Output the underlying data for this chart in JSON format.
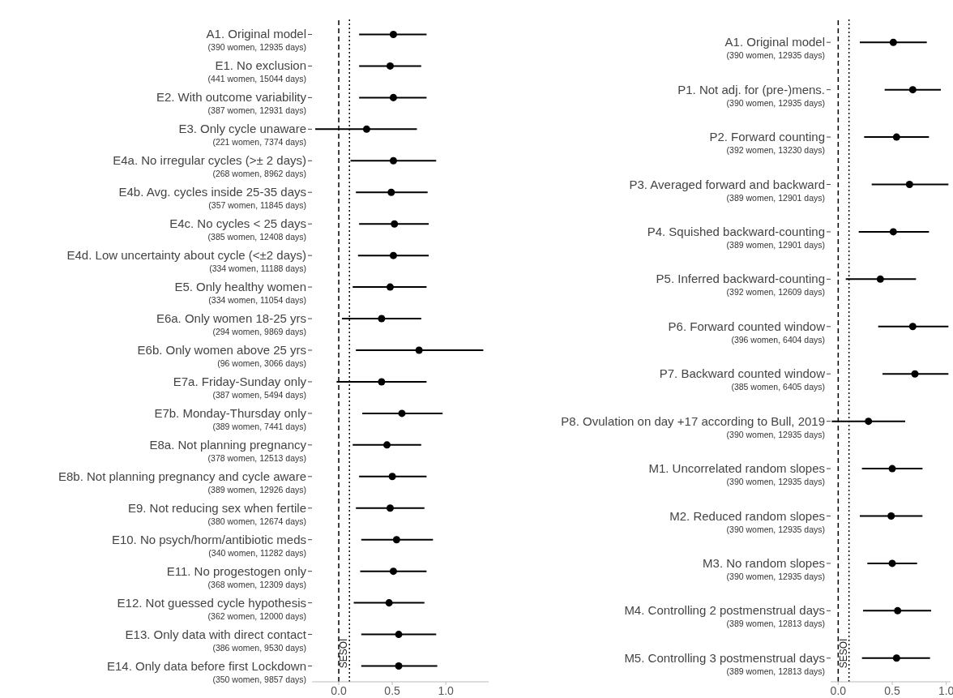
{
  "chart_data": [
    {
      "type": "scatter",
      "orientation": "horizontal",
      "marker": "circle",
      "categories": [
        "A1. Original model\n(390 women, 12935 days)",
        "E1. No exclusion\n(441 women, 15044 days)",
        "E2. With outcome variability\n(387 women, 12931 days)",
        "E3. Only cycle unaware\n(221 women, 7374 days)",
        "E4a. No irregular cycles (>± 2 days)\n(268 women, 8962 days)",
        "E4b. Avg. cycles inside 25-35 days\n(357 women, 11845 days)",
        "E4c. No cycles < 25 days\n(385 women, 12408 days)",
        "E4d. Low uncertainty about cycle (<±2 days)\n(334 women, 11188 days)",
        "E5. Only healthy women\n(334 women, 11054 days)",
        "E6a. Only women 18-25 yrs\n(294 women, 9869 days)",
        "E6b. Only women above 25 yrs\n(96 women, 3066 days)",
        "E7a. Friday-Sunday only\n(387 women, 5494 days)",
        "E7b. Monday-Thursday only\n(389 women, 7441 days)",
        "E8a. Not planning pregnancy\n(378 women, 12513 days)",
        "E8b. Not planning pregnancy and cycle aware\n(389 women, 12926 days)",
        "E9. Not reducing sex when fertile\n(380 women, 12674 days)",
        "E10. No psych/horm/antibiotic meds\n(340 women, 11282 days)",
        "E11. No progestogen only\n(368 women, 12309 days)",
        "E12. Not guessed cycle hypothesis\n(362 women, 12000 days)",
        "E13. Only data with direct contact\n(386 women, 9530 days)",
        "E14. Only data before first Lockdown\n(350 women, 9857 days)"
      ],
      "series": [
        {
          "color": "#000000",
          "values": [
            0.51,
            0.48,
            0.51,
            0.26,
            0.51,
            0.49,
            0.52,
            0.51,
            0.48,
            0.4,
            0.75,
            0.4,
            0.59,
            0.45,
            0.5,
            0.48,
            0.54,
            0.51,
            0.47,
            0.56,
            0.56
          ],
          "errors": [
            [
              0.19,
              0.82
            ],
            [
              0.19,
              0.77
            ],
            [
              0.19,
              0.82
            ],
            [
              -0.22,
              0.73
            ],
            [
              0.11,
              0.91
            ],
            [
              0.16,
              0.83
            ],
            [
              0.19,
              0.84
            ],
            [
              0.18,
              0.84
            ],
            [
              0.13,
              0.82
            ],
            [
              0.03,
              0.77
            ],
            [
              0.16,
              1.35
            ],
            [
              -0.02,
              0.82
            ],
            [
              0.22,
              0.97
            ],
            [
              0.13,
              0.77
            ],
            [
              0.19,
              0.82
            ],
            [
              0.16,
              0.8
            ],
            [
              0.21,
              0.88
            ],
            [
              0.2,
              0.82
            ],
            [
              0.14,
              0.8
            ],
            [
              0.21,
              0.91
            ],
            [
              0.21,
              0.92
            ]
          ]
        }
      ],
      "xlim": [
        -0.25,
        1.4
      ],
      "xticks": [
        {
          "value": 0,
          "label": "0.0"
        },
        {
          "value": 0.5,
          "label": "0.5"
        },
        {
          "value": 1,
          "label": "1.0"
        }
      ],
      "ref_lines": [
        {
          "axis": "x",
          "value": 0,
          "line_style": "dashed",
          "color": "#000000"
        },
        {
          "axis": "x",
          "value": 0.1,
          "label": "SESOI",
          "line_style": "dotted",
          "color": "#000000"
        }
      ]
    },
    {
      "type": "scatter",
      "orientation": "horizontal",
      "marker": "circle",
      "categories": [
        "A1. Original model\n(390 women, 12935 days)",
        "P1. Not adj. for (pre-)mens.\n(390 women, 12935 days)",
        "P2. Forward counting\n(392 women, 13230 days)",
        "P3. Averaged forward and backward\n(389 women, 12901 days)",
        "P4. Squished backward-counting\n(389 women, 12901 days)",
        "P5. Inferred backward-counting\n(392 women, 12609 days)",
        "P6. Forward counted window\n(396 women, 6404 days)",
        "P7. Backward counted window\n(385 women, 6405 days)",
        "P8. Ovulation on day +17 according to Bull, 2019\n(390 women, 12935 days)",
        "M1. Uncorrelated random slopes\n(390 women, 12935 days)",
        "M2. Reduced random slopes\n(390 women, 12935 days)",
        "M3. No random slopes\n(390 women, 12935 days)",
        "M4. Controlling 2 postmenstrual days\n(389 women, 12813 days)",
        "M5. Controlling 3 postmenstrual days\n(389 women, 12813 days)"
      ],
      "series": [
        {
          "color": "#000000",
          "values": [
            0.51,
            0.69,
            0.54,
            0.66,
            0.51,
            0.39,
            0.69,
            0.71,
            0.28,
            0.5,
            0.49,
            0.5,
            0.55,
            0.54
          ],
          "errors": [
            [
              0.2,
              0.82
            ],
            [
              0.43,
              0.95
            ],
            [
              0.24,
              0.84
            ],
            [
              0.31,
              1.02
            ],
            [
              0.19,
              0.84
            ],
            [
              0.07,
              0.72
            ],
            [
              0.37,
              1.02
            ],
            [
              0.41,
              1.02
            ],
            [
              -0.06,
              0.62
            ],
            [
              0.22,
              0.78
            ],
            [
              0.2,
              0.78
            ],
            [
              0.27,
              0.73
            ],
            [
              0.23,
              0.86
            ],
            [
              0.22,
              0.85
            ]
          ]
        }
      ],
      "xlim": [
        -0.07,
        1.04
      ],
      "xticks": [
        {
          "value": 0,
          "label": "0.0"
        },
        {
          "value": 0.5,
          "label": "0.5"
        },
        {
          "value": 1,
          "label": "1.0"
        }
      ],
      "ref_lines": [
        {
          "axis": "x",
          "value": 0,
          "line_style": "dashed",
          "color": "#000000"
        },
        {
          "axis": "x",
          "value": 0.1,
          "label": "SESOI",
          "line_style": "dotted",
          "color": "#000000"
        }
      ]
    }
  ]
}
